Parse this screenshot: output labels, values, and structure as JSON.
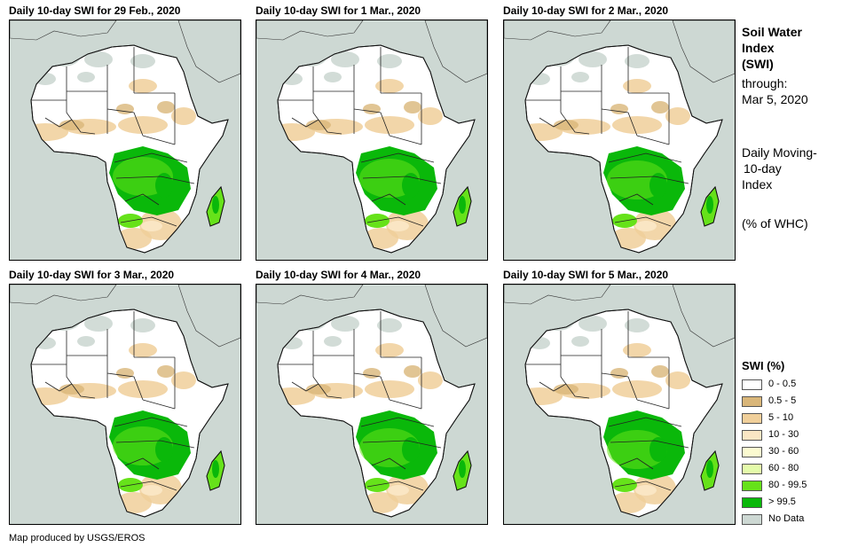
{
  "panels": [
    {
      "title": "Daily 10-day SWI for 29 Feb., 2020"
    },
    {
      "title": "Daily 10-day SWI for 1 Mar., 2020"
    },
    {
      "title": "Daily 10-day SWI for 2 Mar., 2020"
    },
    {
      "title": "Daily 10-day SWI for 3 Mar., 2020"
    },
    {
      "title": "Daily 10-day SWI for 4 Mar., 2020"
    },
    {
      "title": "Daily 10-day SWI for 5 Mar., 2020"
    }
  ],
  "side": {
    "title_line1": "Soil Water",
    "title_line2": "Index",
    "title_line3": "(SWI)",
    "through_label": "through:",
    "through_date": "Mar 5, 2020",
    "desc_line1": "Daily Moving-",
    "desc_line2": "10-day",
    "desc_line3": "Index",
    "unit": "(% of WHC)"
  },
  "legend": {
    "title": "SWI (%)",
    "items": [
      {
        "label": "0 - 0.5",
        "color": "#ffffff"
      },
      {
        "label": "0.5 - 5",
        "color": "#d9b679"
      },
      {
        "label": "5 - 10",
        "color": "#f0cf9a"
      },
      {
        "label": "10 - 30",
        "color": "#fae6c4"
      },
      {
        "label": "30 - 60",
        "color": "#fbfad0"
      },
      {
        "label": "60 - 80",
        "color": "#e4fbaa"
      },
      {
        "label": "80 - 99.5",
        "color": "#66e21a"
      },
      {
        "label": "> 99.5",
        "color": "#0ab80a"
      },
      {
        "label": "No Data",
        "color": "#cdd8d3"
      }
    ]
  },
  "credit": "Map produced by USGS/EROS"
}
